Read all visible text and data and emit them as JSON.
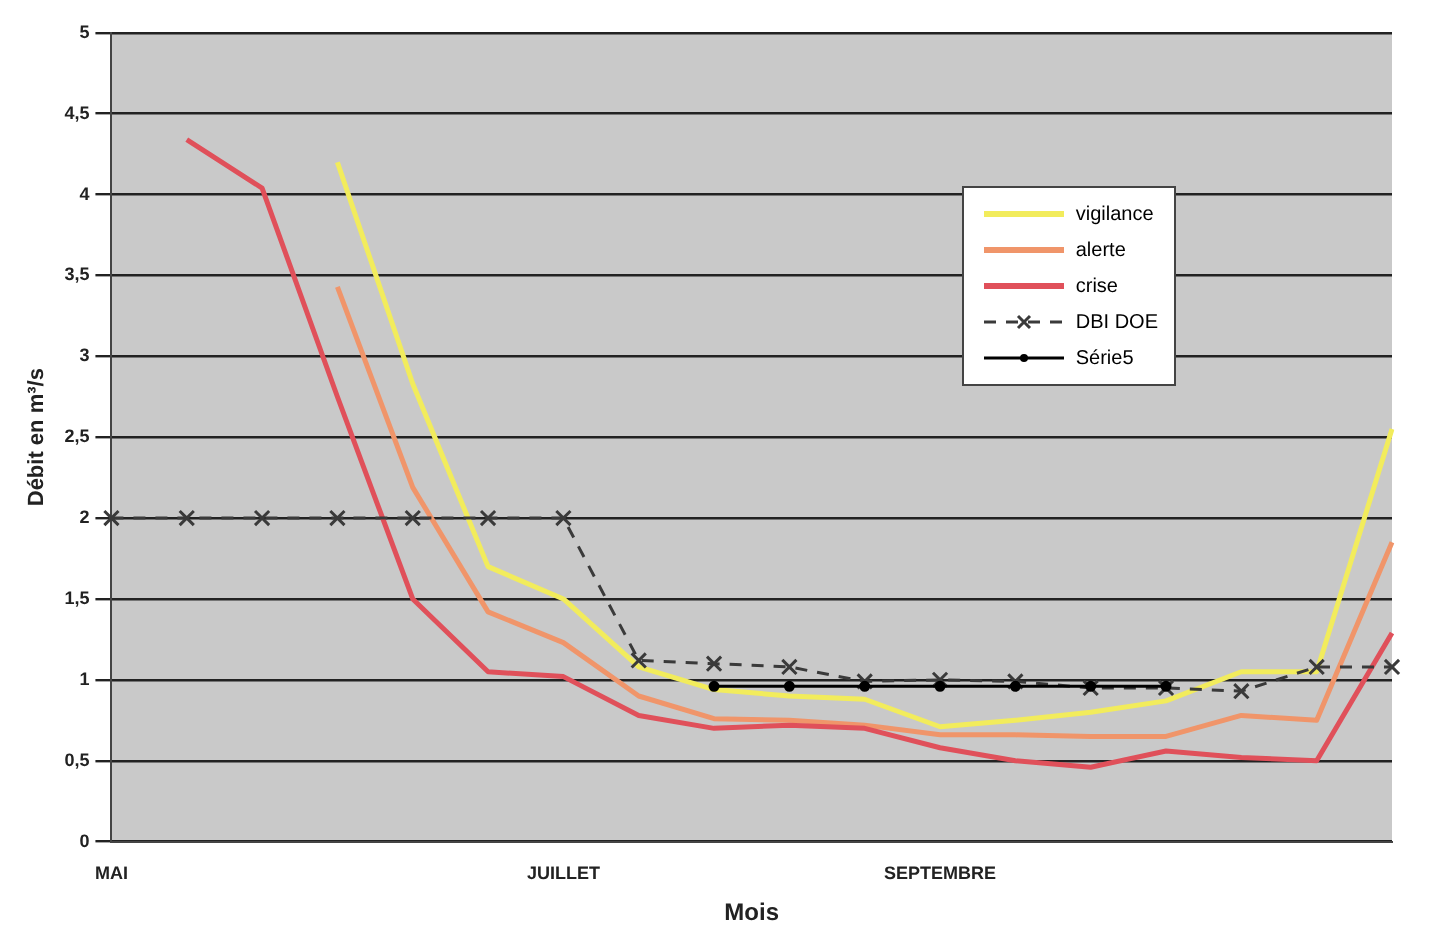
{
  "chart_data": {
    "type": "line",
    "xlabel": "Mois",
    "ylabel": "Débit en m³/s",
    "categories": [
      "MAI",
      null,
      null,
      null,
      null,
      null,
      "JUILLET",
      null,
      null,
      null,
      null,
      "SEPTEMBRE",
      null,
      null,
      null,
      null,
      null,
      null
    ],
    "ylim": [
      0,
      5
    ],
    "yticks": [
      0,
      {
        "value": 0.5,
        "label": "0,5"
      },
      1,
      {
        "value": 1.5,
        "label": "1,5"
      },
      2,
      {
        "value": 2.5,
        "label": "2,5"
      },
      3,
      {
        "value": 3.5,
        "label": "3,5"
      },
      4,
      {
        "value": 4.5,
        "label": "4,5"
      },
      5
    ],
    "grid": "y",
    "legend": "top right",
    "series": [
      {
        "name": "vigilance",
        "color": "#f2ec5c",
        "marker": "none",
        "line_style": "solid",
        "values": [
          null,
          null,
          null,
          4.2,
          2.83,
          1.7,
          1.5,
          1.08,
          0.94,
          0.9,
          0.88,
          0.71,
          0.75,
          0.8,
          0.87,
          1.05,
          1.05,
          2.55
        ]
      },
      {
        "name": "alerte",
        "color": "#f0956a",
        "marker": "none",
        "line_style": "solid",
        "values": [
          null,
          null,
          null,
          3.43,
          2.19,
          1.42,
          1.23,
          0.9,
          0.76,
          0.75,
          0.72,
          0.66,
          0.66,
          0.65,
          0.65,
          0.78,
          0.75,
          1.85
        ]
      },
      {
        "name": "crise",
        "color": "#e0505a",
        "marker": "none",
        "line_style": "solid",
        "values": [
          null,
          4.34,
          4.04,
          2.75,
          1.5,
          1.05,
          1.02,
          0.78,
          0.7,
          0.72,
          0.7,
          0.58,
          0.5,
          0.46,
          0.56,
          0.52,
          0.5,
          1.29
        ]
      },
      {
        "name": "DBI DOE",
        "color": "#3a3a3a",
        "marker": "cross",
        "line_style": "dashed",
        "values": [
          2,
          2,
          2,
          2,
          2,
          2,
          2,
          1.12,
          1.1,
          1.08,
          0.99,
          1,
          0.99,
          0.95,
          0.95,
          0.93,
          1.08,
          1.08
        ]
      },
      {
        "name": "Série5",
        "color": "#000000",
        "marker": "circle",
        "line_style": "solid",
        "values": [
          null,
          null,
          null,
          null,
          null,
          null,
          null,
          null,
          0.96,
          0.96,
          0.96,
          0.96,
          0.96,
          0.96,
          0.96,
          null,
          null,
          null
        ]
      }
    ]
  }
}
